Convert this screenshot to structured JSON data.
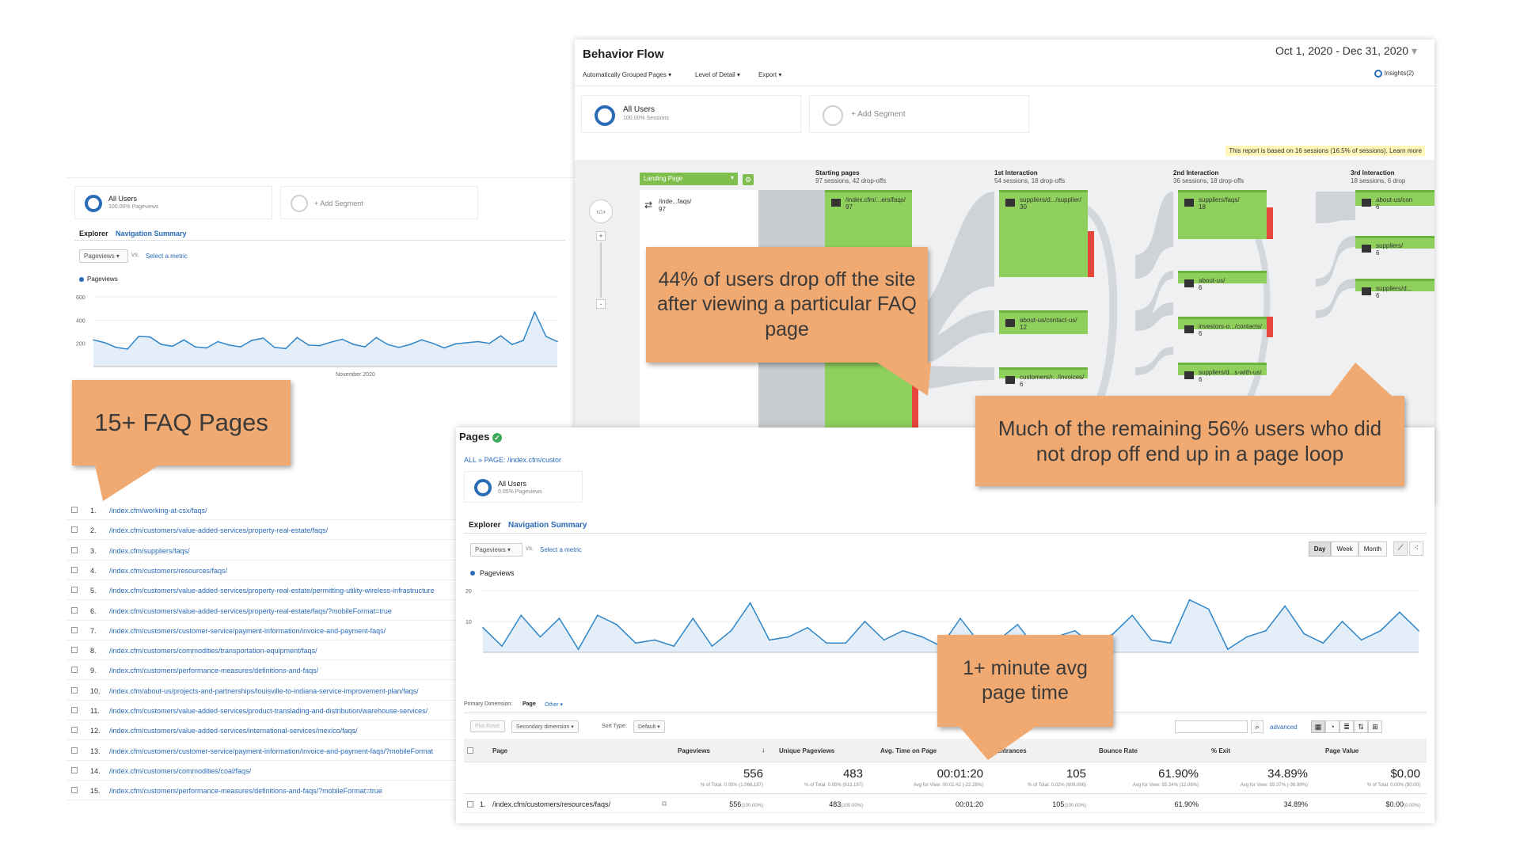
{
  "left_panel": {
    "segment": {
      "name": "All Users",
      "sub": "100.00% Pageviews"
    },
    "add_segment": "+ Add Segment",
    "tabs": [
      "Explorer",
      "Navigation Summary"
    ],
    "metric_select": "Pageviews",
    "vs": "vs.",
    "select_metric": "Select a metric",
    "legend": "Pageviews",
    "y_ticks": [
      "600",
      "400",
      "200"
    ],
    "x_label": "November 2020",
    "series": [
      230,
      205,
      165,
      150,
      260,
      255,
      190,
      175,
      230,
      170,
      160,
      215,
      185,
      170,
      225,
      245,
      165,
      155,
      250,
      185,
      180,
      210,
      235,
      190,
      170,
      250,
      190,
      165,
      190,
      230,
      200,
      160,
      195,
      205,
      215,
      200,
      265,
      190,
      225,
      470,
      260,
      215
    ],
    "urls": [
      "/index.cfm/working-at-csx/faqs/",
      "/index.cfm/customers/value-added-services/property-real-estate/faqs/",
      "/index.cfm/suppliers/faqs/",
      "/index.cfm/customers/resources/faqs/",
      "/index.cfm/customers/value-added-services/property-real-estate/permitting-utility-wireless-infrastructure",
      "/index.cfm/customers/value-added-services/property-real-estate/faqs/?mobileFormat=true",
      "/index.cfm/customers/customer-service/payment-information/invoice-and-payment-faqs/",
      "/index.cfm/customers/commodities/transportation-equipment/faqs/",
      "/index.cfm/customers/performance-measures/definitions-and-faqs/",
      "/index.cfm/about-us/projects-and-partnerships/louisville-to-indiana-service-improvement-plan/faqs/",
      "/index.cfm/customers/value-added-services/product-translading-and-distribution/warehouse-services/",
      "/index.cfm/customers/value-added-services/international-services/mexico/faqs/",
      "/index.cfm/customers/customer-service/payment-information/invoice-and-payment-faqs/?mobileFormat",
      "/index.cfm/customers/commodities/coal/faqs/",
      "/index.cfm/customers/performance-measures/definitions-and-faqs/?mobileFormat=true"
    ]
  },
  "behavior_flow": {
    "title": "Behavior Flow",
    "date_range": "Oct 1, 2020 - Dec 31, 2020",
    "menus": [
      "Automatically Grouped Pages",
      "Level of Detail",
      "Export"
    ],
    "insights": "Insights(2)",
    "segment": {
      "name": "All Users",
      "sub": "100.00% Sessions"
    },
    "add_segment": "+ Add Segment",
    "notice": "This report is based on 16 sessions (16.5% of sessions). Learn more",
    "dimension": "Landing Page",
    "columns": [
      {
        "title": "Starting pages",
        "sub": "97 sessions, 42 drop-offs"
      },
      {
        "title": "1st Interaction",
        "sub": "54 sessions, 18 drop-offs"
      },
      {
        "title": "2nd Interaction",
        "sub": "36 sessions, 18 drop-offs"
      },
      {
        "title": "3rd Interaction",
        "sub": "18 sessions, 6 drop"
      }
    ],
    "landing": {
      "label": "/inde...faqs/",
      "count": "97"
    },
    "start_node": {
      "label": "/index.cfm/...ers/faqs/",
      "count": "97"
    },
    "i1_nodes": [
      {
        "label": "suppliers/d.../supplier/",
        "count": "30"
      },
      {
        "label": "about-us/contact-us/",
        "count": "12"
      },
      {
        "label": "customers/r.../invoices/",
        "count": "6"
      }
    ],
    "i2_nodes": [
      {
        "label": "suppliers/faqs/",
        "count": "18"
      },
      {
        "label": "about-us/",
        "count": "6"
      },
      {
        "label": "investors-o.../contacts/",
        "count": "6"
      },
      {
        "label": "suppliers/d...s-with-us/",
        "count": "6"
      }
    ],
    "i3_nodes": [
      {
        "label": "about-us/con",
        "count": "6"
      },
      {
        "label": "suppliers/",
        "count": "6"
      },
      {
        "label": "suppliers/d...",
        "count": "6"
      }
    ]
  },
  "pages_panel": {
    "title": "Pages",
    "breadcrumb": "ALL » PAGE: /index.cfm/custor",
    "segment": {
      "name": "All Users",
      "sub": "0.05% Pageviews"
    },
    "tabs": [
      "Explorer",
      "Navigation Summary"
    ],
    "metric_select": "Pageviews",
    "vs": "vs.",
    "select_metric": "Select a metric",
    "granularity": [
      "Day",
      "Week",
      "Month"
    ],
    "legend": "Pageviews",
    "y_ticks": [
      "20",
      "10"
    ],
    "x_label": "November 2020",
    "series": [
      8,
      2,
      12,
      5,
      11,
      1,
      12,
      9,
      3,
      4,
      2,
      11,
      2,
      7,
      16,
      4,
      5,
      8,
      3,
      3,
      10,
      4,
      7,
      5,
      2,
      11,
      3,
      4,
      9,
      1,
      5,
      7,
      2,
      6,
      12,
      4,
      3,
      17,
      14,
      1,
      5,
      7,
      15,
      6,
      3,
      10,
      4,
      7,
      13,
      7
    ],
    "primary_dimension_label": "Primary Dimension:",
    "primary_dimension": "Page",
    "other": "Other",
    "plot_rows": "Plot Rows",
    "secondary_dimension": "Secondary dimension",
    "sort_type_label": "Sort Type:",
    "sort_type": "Default",
    "advanced": "advanced",
    "table": {
      "headers": [
        "Page",
        "Pageviews",
        "Unique Pageviews",
        "Avg. Time on Page",
        "Entrances",
        "Bounce Rate",
        "% Exit",
        "Page Value"
      ],
      "totals": [
        "556",
        "483",
        "00:01:20",
        "105",
        "61.90%",
        "34.89%",
        "$0.00"
      ],
      "totals_sub": [
        "% of Total: 0.05% (1,066,187)",
        "% of Total: 0.05% (913,197)",
        "Avg for View: 00:01:42 (-22.28%)",
        "% of Total: 0.02% (609,086)",
        "Avg for View: 55.24% (12.06%)",
        "Avg for View: 55.37% (-36.99%)",
        "% of Total: 0.00% ($0.00)"
      ],
      "row": {
        "num": "1.",
        "page": "/index.cfm/customers/resources/faqs/",
        "values": [
          "556",
          "483",
          "00:01:20",
          "105",
          "61.90%",
          "34.89%",
          "$0.00"
        ],
        "pcts": [
          "(100.00%)",
          "(100.00%)",
          "",
          "(100.00%)",
          "",
          "",
          "(0.00%)"
        ]
      }
    }
  },
  "callouts": {
    "faq_pages": "15+ FAQ Pages",
    "drop_off": "44% of users drop off the site after viewing a particular FAQ page",
    "page_loop": "Much of the remaining 56% users who did not drop off end up in a page loop",
    "avg_time": "1+ minute avg page time"
  },
  "colors": {
    "accent": "#2a6bb8",
    "callout": "#f0a970",
    "flow_green": "#8fcf5c",
    "drop_red": "#e8453c"
  }
}
